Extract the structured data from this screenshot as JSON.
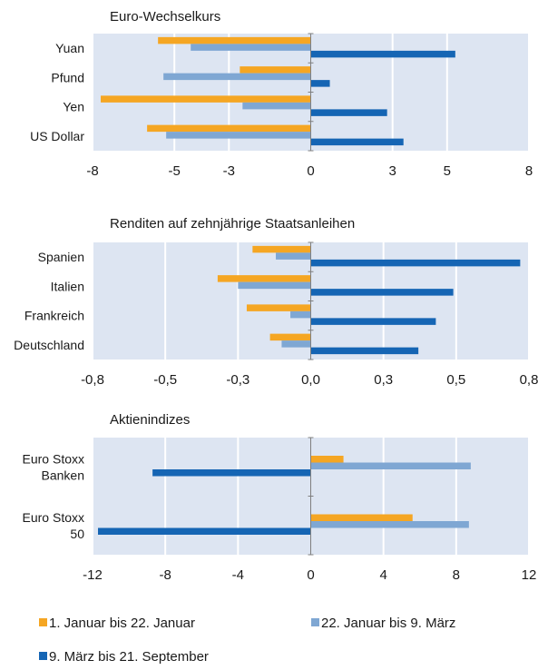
{
  "colors": {
    "series_1": "#F5A623",
    "series_2": "#7FA7D3",
    "series_3": "#1565B4",
    "plot_background": "#DDE5F2",
    "gridline": "#ffffff",
    "axis": "#7f7f7f",
    "text": "#1a1a1a"
  },
  "legend": {
    "position": "bottom",
    "items": [
      {
        "label": "1. Januar bis 22. Januar",
        "color_key": "series_1"
      },
      {
        "label": "22. Januar bis 9. März",
        "color_key": "series_2"
      },
      {
        "label": "9. März bis 21. September",
        "color_key": "series_3"
      }
    ]
  },
  "chart_data": [
    {
      "type": "bar",
      "orientation": "horizontal",
      "title": "Euro-Wechselkurs",
      "categories": [
        "Yuan",
        "Pfund",
        "Yen",
        "US Dollar"
      ],
      "xlim": [
        -8,
        8
      ],
      "xticks": [
        -8,
        -5,
        -3,
        0,
        3,
        5,
        8
      ],
      "grid": true,
      "series": [
        {
          "name": "1. Januar bis 22. Januar",
          "values": [
            -5.6,
            -2.6,
            -7.7,
            -6.0
          ]
        },
        {
          "name": "22. Januar bis 9. März",
          "values": [
            -4.4,
            -5.4,
            -2.5,
            -5.3
          ]
        },
        {
          "name": "9. März bis 21. September",
          "values": [
            5.3,
            0.7,
            2.8,
            3.4
          ]
        }
      ]
    },
    {
      "type": "bar",
      "orientation": "horizontal",
      "title": "Renditen auf zehnjährige Staatsanleihen",
      "categories": [
        "Spanien",
        "Italien",
        "Frankreich",
        "Deutschland"
      ],
      "xlim": [
        -0.75,
        0.75
      ],
      "xticks": [
        -0.75,
        -0.5,
        -0.25,
        0,
        0.25,
        0.5,
        0.75
      ],
      "xtick_labels": [
        "-0,8",
        "-0,5",
        "-0,3",
        "0,0",
        "0,3",
        "0,5",
        "0,8"
      ],
      "grid": true,
      "series": [
        {
          "name": "1. Januar bis 22. Januar",
          "values": [
            -0.2,
            -0.32,
            -0.22,
            -0.14
          ]
        },
        {
          "name": "22. Januar bis 9. März",
          "values": [
            -0.12,
            -0.25,
            -0.07,
            -0.1
          ]
        },
        {
          "name": "9. März bis 21. September",
          "values": [
            0.72,
            0.49,
            0.43,
            0.37
          ]
        }
      ]
    },
    {
      "type": "bar",
      "orientation": "horizontal",
      "title": "Aktienindizes",
      "categories": [
        [
          "Euro Stoxx",
          "Banken"
        ],
        [
          "Euro Stoxx",
          "50"
        ]
      ],
      "xlim": [
        -12,
        12
      ],
      "xticks": [
        -12,
        -8,
        -4,
        0,
        4,
        8,
        12
      ],
      "grid": true,
      "series": [
        {
          "name": "1. Januar bis 22. Januar",
          "values": [
            1.8,
            5.6
          ]
        },
        {
          "name": "22. Januar bis 9. März",
          "values": [
            8.8,
            8.7
          ]
        },
        {
          "name": "9. März bis 21. September",
          "values": [
            -8.7,
            -11.7
          ]
        }
      ]
    }
  ]
}
